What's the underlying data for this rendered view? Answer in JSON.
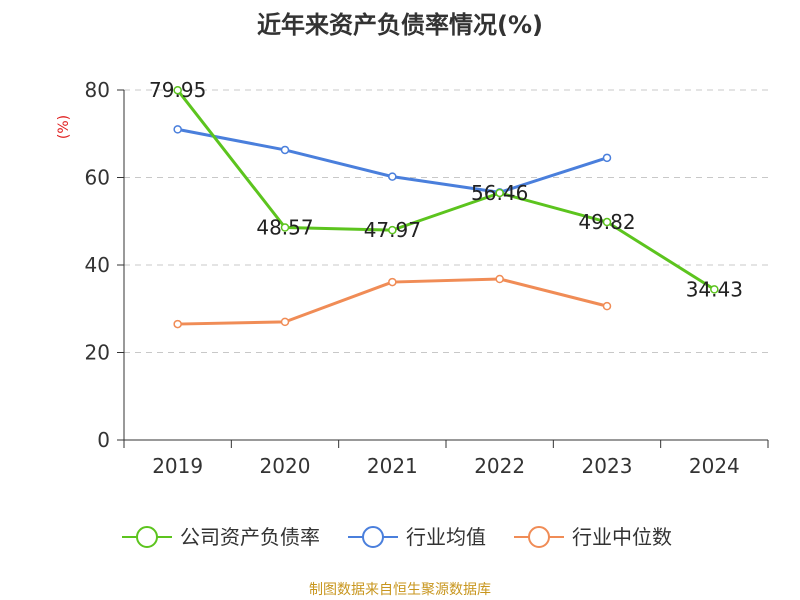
{
  "chart_data": {
    "type": "line",
    "title": "近年来资产负债率情况(%)",
    "ylabel": "(%)",
    "xlabel": "",
    "categories": [
      "2019",
      "2020",
      "2021",
      "2022",
      "2023",
      "2024"
    ],
    "ylim": [
      0,
      80
    ],
    "yticks": [
      0,
      20,
      40,
      60,
      80
    ],
    "grid": "horizontal dashed",
    "legend_position": "bottom",
    "series": [
      {
        "name": "公司资产负债率",
        "color": "#5cc41e",
        "values": [
          79.95,
          48.57,
          47.97,
          56.46,
          49.82,
          34.43
        ],
        "labels": [
          "79.95",
          "48.57",
          "47.97",
          "56.46",
          "49.82",
          "34.43"
        ]
      },
      {
        "name": "行业均值",
        "color": "#4a7fdc",
        "values": [
          71.0,
          66.3,
          60.2,
          56.6,
          64.5,
          null
        ]
      },
      {
        "name": "行业中位数",
        "color": "#f08c56",
        "values": [
          26.5,
          27.0,
          36.1,
          36.8,
          30.6,
          null
        ]
      }
    ]
  },
  "footer": {
    "source": "制图数据来自恒生聚源数据库"
  }
}
